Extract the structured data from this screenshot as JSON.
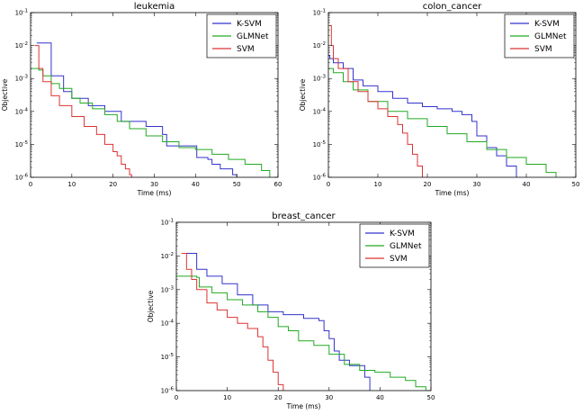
{
  "series_colors": {
    "K-SVM": "#3333cc",
    "GLMNet": "#22aa22",
    "SVM": "#dd3333"
  },
  "chart_data": [
    {
      "type": "line",
      "title": "leukemia",
      "xlabel": "Time (ms)",
      "ylabel": "Objective",
      "xlim": [
        0,
        60
      ],
      "ylim": [
        1e-06,
        0.1
      ],
      "yscale": "log",
      "xticks": [
        "0",
        "10",
        "20",
        "30",
        "40",
        "50",
        "60"
      ],
      "yticks": [
        "10-6",
        "10-5",
        "10-4",
        "10-3",
        "10-2",
        "10-1"
      ],
      "legend_position": "top-right",
      "series": [
        {
          "name": "K-SVM",
          "points": [
            [
              1.5,
              0.012
            ],
            [
              2.5,
              0.012
            ],
            [
              5,
              0.0012
            ],
            [
              8,
              0.0004
            ],
            [
              10,
              0.00025
            ],
            [
              14,
              0.00015
            ],
            [
              18,
              0.0001
            ],
            [
              22,
              5e-05
            ],
            [
              28,
              3.5e-05
            ],
            [
              32,
              2e-05
            ],
            [
              33,
              9e-06
            ],
            [
              40,
              9e-06
            ],
            [
              40.3,
              4e-06
            ],
            [
              43,
              3.5e-06
            ],
            [
              44,
              2.5e-06
            ],
            [
              46,
              1.8e-06
            ],
            [
              49,
              1.2e-06
            ],
            [
              50,
              1e-06
            ]
          ]
        },
        {
          "name": "GLMNet",
          "points": [
            [
              0,
              0.002
            ],
            [
              2,
              0.0018
            ],
            [
              3,
              0.0012
            ],
            [
              5,
              0.0007
            ],
            [
              7,
              0.0005
            ],
            [
              10,
              0.00025
            ],
            [
              12,
              0.00018
            ],
            [
              15,
              0.00012
            ],
            [
              18,
              8e-05
            ],
            [
              21,
              5e-05
            ],
            [
              24,
              3e-05
            ],
            [
              28,
              1.8e-05
            ],
            [
              32,
              1.2e-05
            ],
            [
              36,
              8e-06
            ],
            [
              40,
              7e-06
            ],
            [
              44,
              5e-06
            ],
            [
              48,
              3.5e-06
            ],
            [
              52,
              2.5e-06
            ],
            [
              56,
              1.6e-06
            ],
            [
              58,
              1e-06
            ]
          ]
        },
        {
          "name": "SVM",
          "points": [
            [
              1,
              0.01
            ],
            [
              2,
              0.002
            ],
            [
              3,
              0.0008
            ],
            [
              5,
              0.0003
            ],
            [
              7,
              0.00015
            ],
            [
              10,
              7e-05
            ],
            [
              13,
              3.5e-05
            ],
            [
              16,
              2e-05
            ],
            [
              18,
              1e-05
            ],
            [
              20,
              6e-06
            ],
            [
              21,
              4.5e-06
            ],
            [
              22,
              2.5e-06
            ],
            [
              23,
              1.8e-06
            ],
            [
              24,
              1.2e-06
            ],
            [
              24.5,
              1e-06
            ]
          ]
        }
      ]
    },
    {
      "type": "line",
      "title": "colon_cancer",
      "xlabel": "Time (ms)",
      "ylabel": "Objective",
      "xlim": [
        0,
        50
      ],
      "ylim": [
        1e-06,
        0.1
      ],
      "yscale": "log",
      "xticks": [
        "0",
        "10",
        "20",
        "30",
        "40",
        "50"
      ],
      "yticks": [
        "10-6",
        "10-5",
        "10-4",
        "10-3",
        "10-2",
        "10-1"
      ],
      "legend_position": "top-right",
      "series": [
        {
          "name": "K-SVM",
          "points": [
            [
              0,
              0.005
            ],
            [
              0.3,
              0.004
            ],
            [
              1,
              0.003
            ],
            [
              3,
              0.002
            ],
            [
              5,
              0.0009
            ],
            [
              7,
              0.0006
            ],
            [
              10,
              0.0004
            ],
            [
              13,
              0.00025
            ],
            [
              16,
              0.00018
            ],
            [
              19,
              0.00014
            ],
            [
              22,
              0.00012
            ],
            [
              25,
              0.0001
            ],
            [
              27,
              8e-05
            ],
            [
              29,
              5e-05
            ],
            [
              30,
              1.8e-05
            ],
            [
              32,
              8e-06
            ],
            [
              34,
              4.5e-06
            ],
            [
              36,
              2.2e-06
            ],
            [
              38,
              1e-06
            ]
          ]
        },
        {
          "name": "GLMNet",
          "points": [
            [
              0,
              0.002
            ],
            [
              1,
              0.0015
            ],
            [
              3,
              0.0008
            ],
            [
              5,
              0.00045
            ],
            [
              8,
              0.0002
            ],
            [
              12,
              0.0001
            ],
            [
              16,
              6e-05
            ],
            [
              20,
              3.5e-05
            ],
            [
              24,
              2.1e-05
            ],
            [
              28,
              1.2e-05
            ],
            [
              32,
              7e-06
            ],
            [
              36,
              4e-06
            ],
            [
              40,
              2.5e-06
            ],
            [
              44,
              1.4e-06
            ],
            [
              46,
              1e-06
            ]
          ]
        },
        {
          "name": "SVM",
          "points": [
            [
              0.2,
              0.04
            ],
            [
              0.6,
              0.01
            ],
            [
              1,
              0.004
            ],
            [
              2,
              0.002
            ],
            [
              4,
              0.0008
            ],
            [
              6,
              0.0004
            ],
            [
              8,
              0.0002
            ],
            [
              10,
              0.00012
            ],
            [
              12,
              7e-05
            ],
            [
              14,
              4e-05
            ],
            [
              15,
              2.2e-05
            ],
            [
              16,
              1e-05
            ],
            [
              17,
              5e-06
            ],
            [
              18,
              2.2e-06
            ],
            [
              19,
              1e-06
            ]
          ]
        }
      ]
    },
    {
      "type": "line",
      "title": "breast_cancer",
      "xlabel": "Time (ms)",
      "ylabel": "Objective",
      "xlim": [
        0,
        50
      ],
      "ylim": [
        1e-06,
        0.1
      ],
      "yscale": "log",
      "xticks": [
        "0",
        "10",
        "20",
        "30",
        "40",
        "50"
      ],
      "yticks": [
        "10-6",
        "10-5",
        "10-4",
        "10-3",
        "10-2",
        "10-1"
      ],
      "legend_position": "top-right",
      "series": [
        {
          "name": "K-SVM",
          "points": [
            [
              1.5,
              0.012
            ],
            [
              2,
              0.012
            ],
            [
              4,
              0.004
            ],
            [
              6,
              0.0025
            ],
            [
              9,
              0.0015
            ],
            [
              12,
              0.0007
            ],
            [
              15,
              0.00035
            ],
            [
              18,
              0.00022
            ],
            [
              21,
              0.00018
            ],
            [
              25,
              0.00014
            ],
            [
              28,
              0.00012
            ],
            [
              29,
              6e-05
            ],
            [
              30,
              3.5e-05
            ],
            [
              31,
              1.5e-05
            ],
            [
              32,
              8e-06
            ],
            [
              34,
              5.5e-06
            ],
            [
              37,
              2.5e-06
            ],
            [
              38,
              1e-06
            ]
          ]
        },
        {
          "name": "GLMNet",
          "points": [
            [
              0,
              0.0025
            ],
            [
              4,
              0.0023
            ],
            [
              4.5,
              0.0012
            ],
            [
              7,
              0.0008
            ],
            [
              10,
              0.0005
            ],
            [
              13,
              0.00035
            ],
            [
              16,
              0.00022
            ],
            [
              18,
              0.00015
            ],
            [
              20,
              8e-05
            ],
            [
              22,
              6e-05
            ],
            [
              24,
              3e-05
            ],
            [
              27,
              2.2e-05
            ],
            [
              30,
              1.2e-05
            ],
            [
              33,
              6e-06
            ],
            [
              36,
              4e-06
            ],
            [
              39,
              3.5e-06
            ],
            [
              42,
              2.5e-06
            ],
            [
              45,
              2e-06
            ],
            [
              47,
              1.3e-06
            ],
            [
              49,
              1e-06
            ]
          ]
        },
        {
          "name": "SVM",
          "points": [
            [
              1,
              0.012
            ],
            [
              2,
              0.004
            ],
            [
              3,
              0.002
            ],
            [
              4,
              0.001
            ],
            [
              6,
              0.0004
            ],
            [
              8,
              0.00025
            ],
            [
              10,
              0.00015
            ],
            [
              12,
              0.0001
            ],
            [
              14,
              7e-05
            ],
            [
              16,
              4e-05
            ],
            [
              17,
              2e-05
            ],
            [
              18,
              8e-06
            ],
            [
              19,
              3.5e-06
            ],
            [
              20,
              1.5e-06
            ],
            [
              21,
              1e-06
            ]
          ]
        }
      ]
    }
  ]
}
